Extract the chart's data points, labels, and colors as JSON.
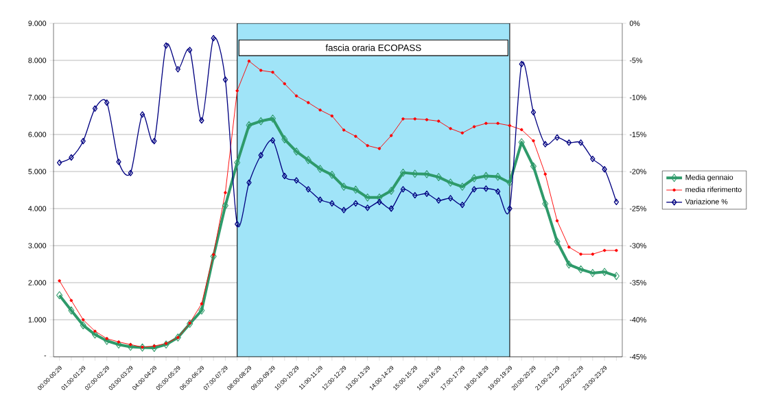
{
  "chart_data": {
    "type": "line",
    "categories": [
      "00:00-00:29",
      null,
      "01:00-01:29",
      null,
      "02:00-02:29",
      null,
      "03:00-03:29",
      null,
      "04:00-04:29",
      null,
      "05:00-05:29",
      null,
      "06:00-06:29",
      null,
      "07:00-07:29",
      null,
      "08:00-08:29",
      null,
      "09:00-09:29",
      null,
      "10:00-10:29",
      null,
      "11:00-11:29",
      null,
      "12:00-12:29",
      null,
      "13:00-13:29",
      null,
      "14:00-14:29",
      null,
      "15:00-15:29",
      null,
      "16:00-16:29",
      null,
      "17:00-17:29",
      null,
      "18:00-18:29",
      null,
      "19:00-19:29",
      null,
      "20:00-20:29",
      null,
      "21:00-21:29",
      null,
      "22:00-22:29",
      null,
      "23:00-23:29",
      null
    ],
    "series": [
      {
        "name": "Media gennaio",
        "color": "#2e9a6a",
        "marker": "diamond",
        "values": [
          1660,
          1250,
          850,
          600,
          430,
          330,
          270,
          250,
          240,
          330,
          520,
          890,
          1250,
          2710,
          4080,
          5240,
          6250,
          6360,
          6430,
          5870,
          5540,
          5310,
          5070,
          4910,
          4590,
          4510,
          4300,
          4300,
          4480,
          4970,
          4940,
          4930,
          4850,
          4700,
          4590,
          4820,
          4880,
          4860,
          4700,
          5790,
          5140,
          4130,
          3110,
          2490,
          2360,
          2260,
          2290,
          2180
        ]
      },
      {
        "name": "media riferimento",
        "color": "#ff0000",
        "marker": "circle",
        "values": [
          2050,
          1520,
          1000,
          690,
          490,
          400,
          330,
          260,
          290,
          360,
          520,
          910,
          1430,
          2760,
          4430,
          7180,
          7980,
          7730,
          7680,
          7370,
          7040,
          6860,
          6660,
          6500,
          6120,
          5950,
          5700,
          5620,
          5970,
          6420,
          6420,
          6400,
          6360,
          6160,
          6040,
          6210,
          6300,
          6300,
          6240,
          6130,
          5830,
          4930,
          3670,
          2960,
          2770,
          2770,
          2870,
          2870
        ]
      },
      {
        "name": "Variazione %",
        "color": "#000080",
        "marker": "diamond",
        "axis": "y2",
        "values": [
          -18.8,
          -18.1,
          -15.9,
          -11.5,
          -10.7,
          -18.7,
          -20.2,
          -12.3,
          -15.9,
          -3.0,
          -6.2,
          -3.6,
          -13.1,
          -2.0,
          -7.6,
          -27.1,
          -21.5,
          -17.8,
          -15.8,
          -20.6,
          -21.2,
          -22.4,
          -23.8,
          -24.3,
          -25.2,
          -24.3,
          -24.9,
          -24.1,
          -25.0,
          -22.4,
          -23.2,
          -23.0,
          -23.9,
          -23.6,
          -24.5,
          -22.4,
          -22.3,
          -22.7,
          -25.0,
          -5.5,
          -12.0,
          -16.3,
          -15.4,
          -16.1,
          -16.1,
          -18.3,
          -19.7,
          -24.1
        ]
      }
    ],
    "ylim": [
      0,
      9000
    ],
    "yticks": [
      {
        "value": 0,
        "label": "-"
      },
      {
        "value": 1000,
        "label": "1.000"
      },
      {
        "value": 2000,
        "label": "2.000"
      },
      {
        "value": 3000,
        "label": "3.000"
      },
      {
        "value": 4000,
        "label": "4.000"
      },
      {
        "value": 5000,
        "label": "5.000"
      },
      {
        "value": 6000,
        "label": "6.000"
      },
      {
        "value": 7000,
        "label": "7.000"
      },
      {
        "value": 8000,
        "label": "8.000"
      },
      {
        "value": 9000,
        "label": "9.000"
      }
    ],
    "y2lim": [
      -45,
      0
    ],
    "y2ticks": [
      {
        "value": -45,
        "label": "-45%"
      },
      {
        "value": -40,
        "label": "-40%"
      },
      {
        "value": -35,
        "label": "-35%"
      },
      {
        "value": -30,
        "label": "-30%"
      },
      {
        "value": -25,
        "label": "-25%"
      },
      {
        "value": -20,
        "label": "-20%"
      },
      {
        "value": -15,
        "label": "-15%"
      },
      {
        "value": -10,
        "label": "-10%"
      },
      {
        "value": -5,
        "label": "-5%"
      },
      {
        "value": 0,
        "label": "0%"
      }
    ],
    "annotations": [
      "fascia oraria ECOPASS"
    ],
    "grid": "y",
    "legend": "right"
  }
}
